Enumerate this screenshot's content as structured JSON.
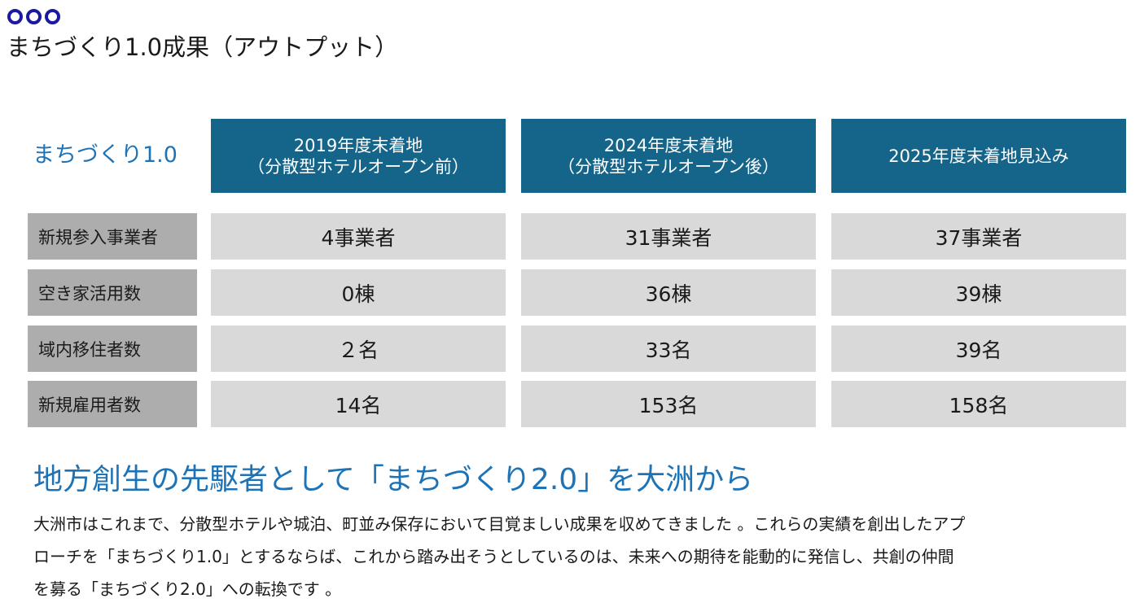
{
  "heading": "まちづくり1.0成果（アウトプット）",
  "table": {
    "corner_label": "まちづくり1.0",
    "columns": [
      {
        "line1": "2019年度末着地",
        "line2": "（分散型ホテルオープン前）"
      },
      {
        "line1": "2024年度末着地",
        "line2": "（分散型ホテルオープン後）"
      },
      {
        "line1": "2025年度末着地見込み",
        "line2": ""
      }
    ],
    "rows": [
      {
        "label": "新規参入事業者",
        "values": [
          "4事業者",
          "31事業者",
          "37事業者"
        ]
      },
      {
        "label": "空き家活用数",
        "values": [
          "0棟",
          "36棟",
          "39棟"
        ]
      },
      {
        "label": "域内移住者数",
        "values": [
          "２名",
          "33名",
          "39名"
        ]
      },
      {
        "label": "新規雇用者数",
        "values": [
          "14名",
          "153名",
          "158名"
        ]
      }
    ]
  },
  "section": {
    "title": "地方創生の先駆者として「まちづくり2.0」を大洲から",
    "paragraph_lines": [
      "大洲市はこれまで、分散型ホテルや城泊、町並み保存において目覚ましい成果を収めてきました 。これらの実績を創出したアプ",
      "ローチを「まちづくり1.0」とするならば、これから踏み出そうとしているのは、未来への期待を能動的に発信し、共創の仲間",
      "を募る「まちづくり2.0」への転換です 。"
    ]
  },
  "colors": {
    "accent_blue": "#1d73b5",
    "header_bg": "#156489",
    "label_bg": "#adadad",
    "cell_bg": "#d9d9d9",
    "bullet": "#1a1aa0"
  }
}
